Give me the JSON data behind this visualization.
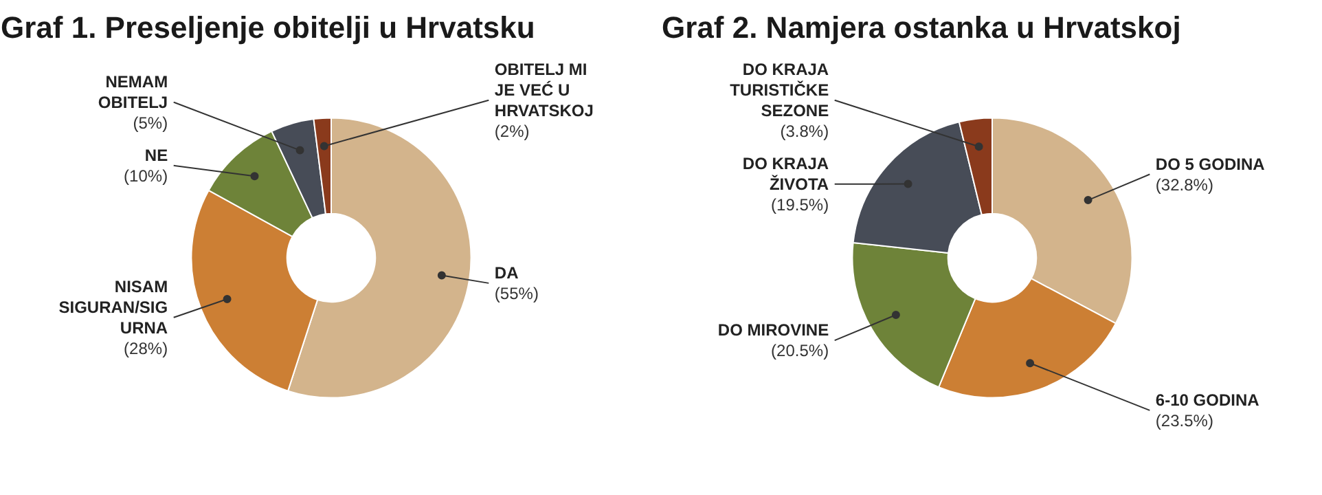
{
  "chart_data": [
    {
      "type": "donut",
      "title": "Graf 1. Preseljenje obitelji u Hrvatsku",
      "categories": [
        "DA",
        "NISAM SIGURAN/SIGURNA",
        "NE",
        "NEMAM OBITELJ",
        "OBITELJ MI JE VEĆ U HRVATSKOJ"
      ],
      "values": [
        55,
        28,
        10,
        5,
        2
      ],
      "colors": [
        "#d3b48c",
        "#cc7f34",
        "#6e8339",
        "#474c57",
        "#8a3a1c"
      ],
      "value_labels": [
        "(55%)",
        "(28%)",
        "(10%)",
        "(5%)",
        "(2%)"
      ]
    },
    {
      "type": "donut",
      "title": "Graf 2. Namjera ostanka u Hrvatskoj",
      "categories": [
        "DO 5 GODINA",
        "6-10 GODINA",
        "DO MIROVINE",
        "DO KRAJA ŽIVOTA",
        "DO KRAJA TURISTIČKE SEZONE"
      ],
      "values": [
        32.8,
        23.5,
        20.5,
        19.5,
        3.8
      ],
      "colors": [
        "#d3b48c",
        "#cc7f34",
        "#6e8339",
        "#474c57",
        "#8a3a1c"
      ],
      "value_labels": [
        "(32.8%)",
        "(23.5%)",
        "(20.5%)",
        "(19.5%)",
        "(3.8%)"
      ]
    }
  ]
}
